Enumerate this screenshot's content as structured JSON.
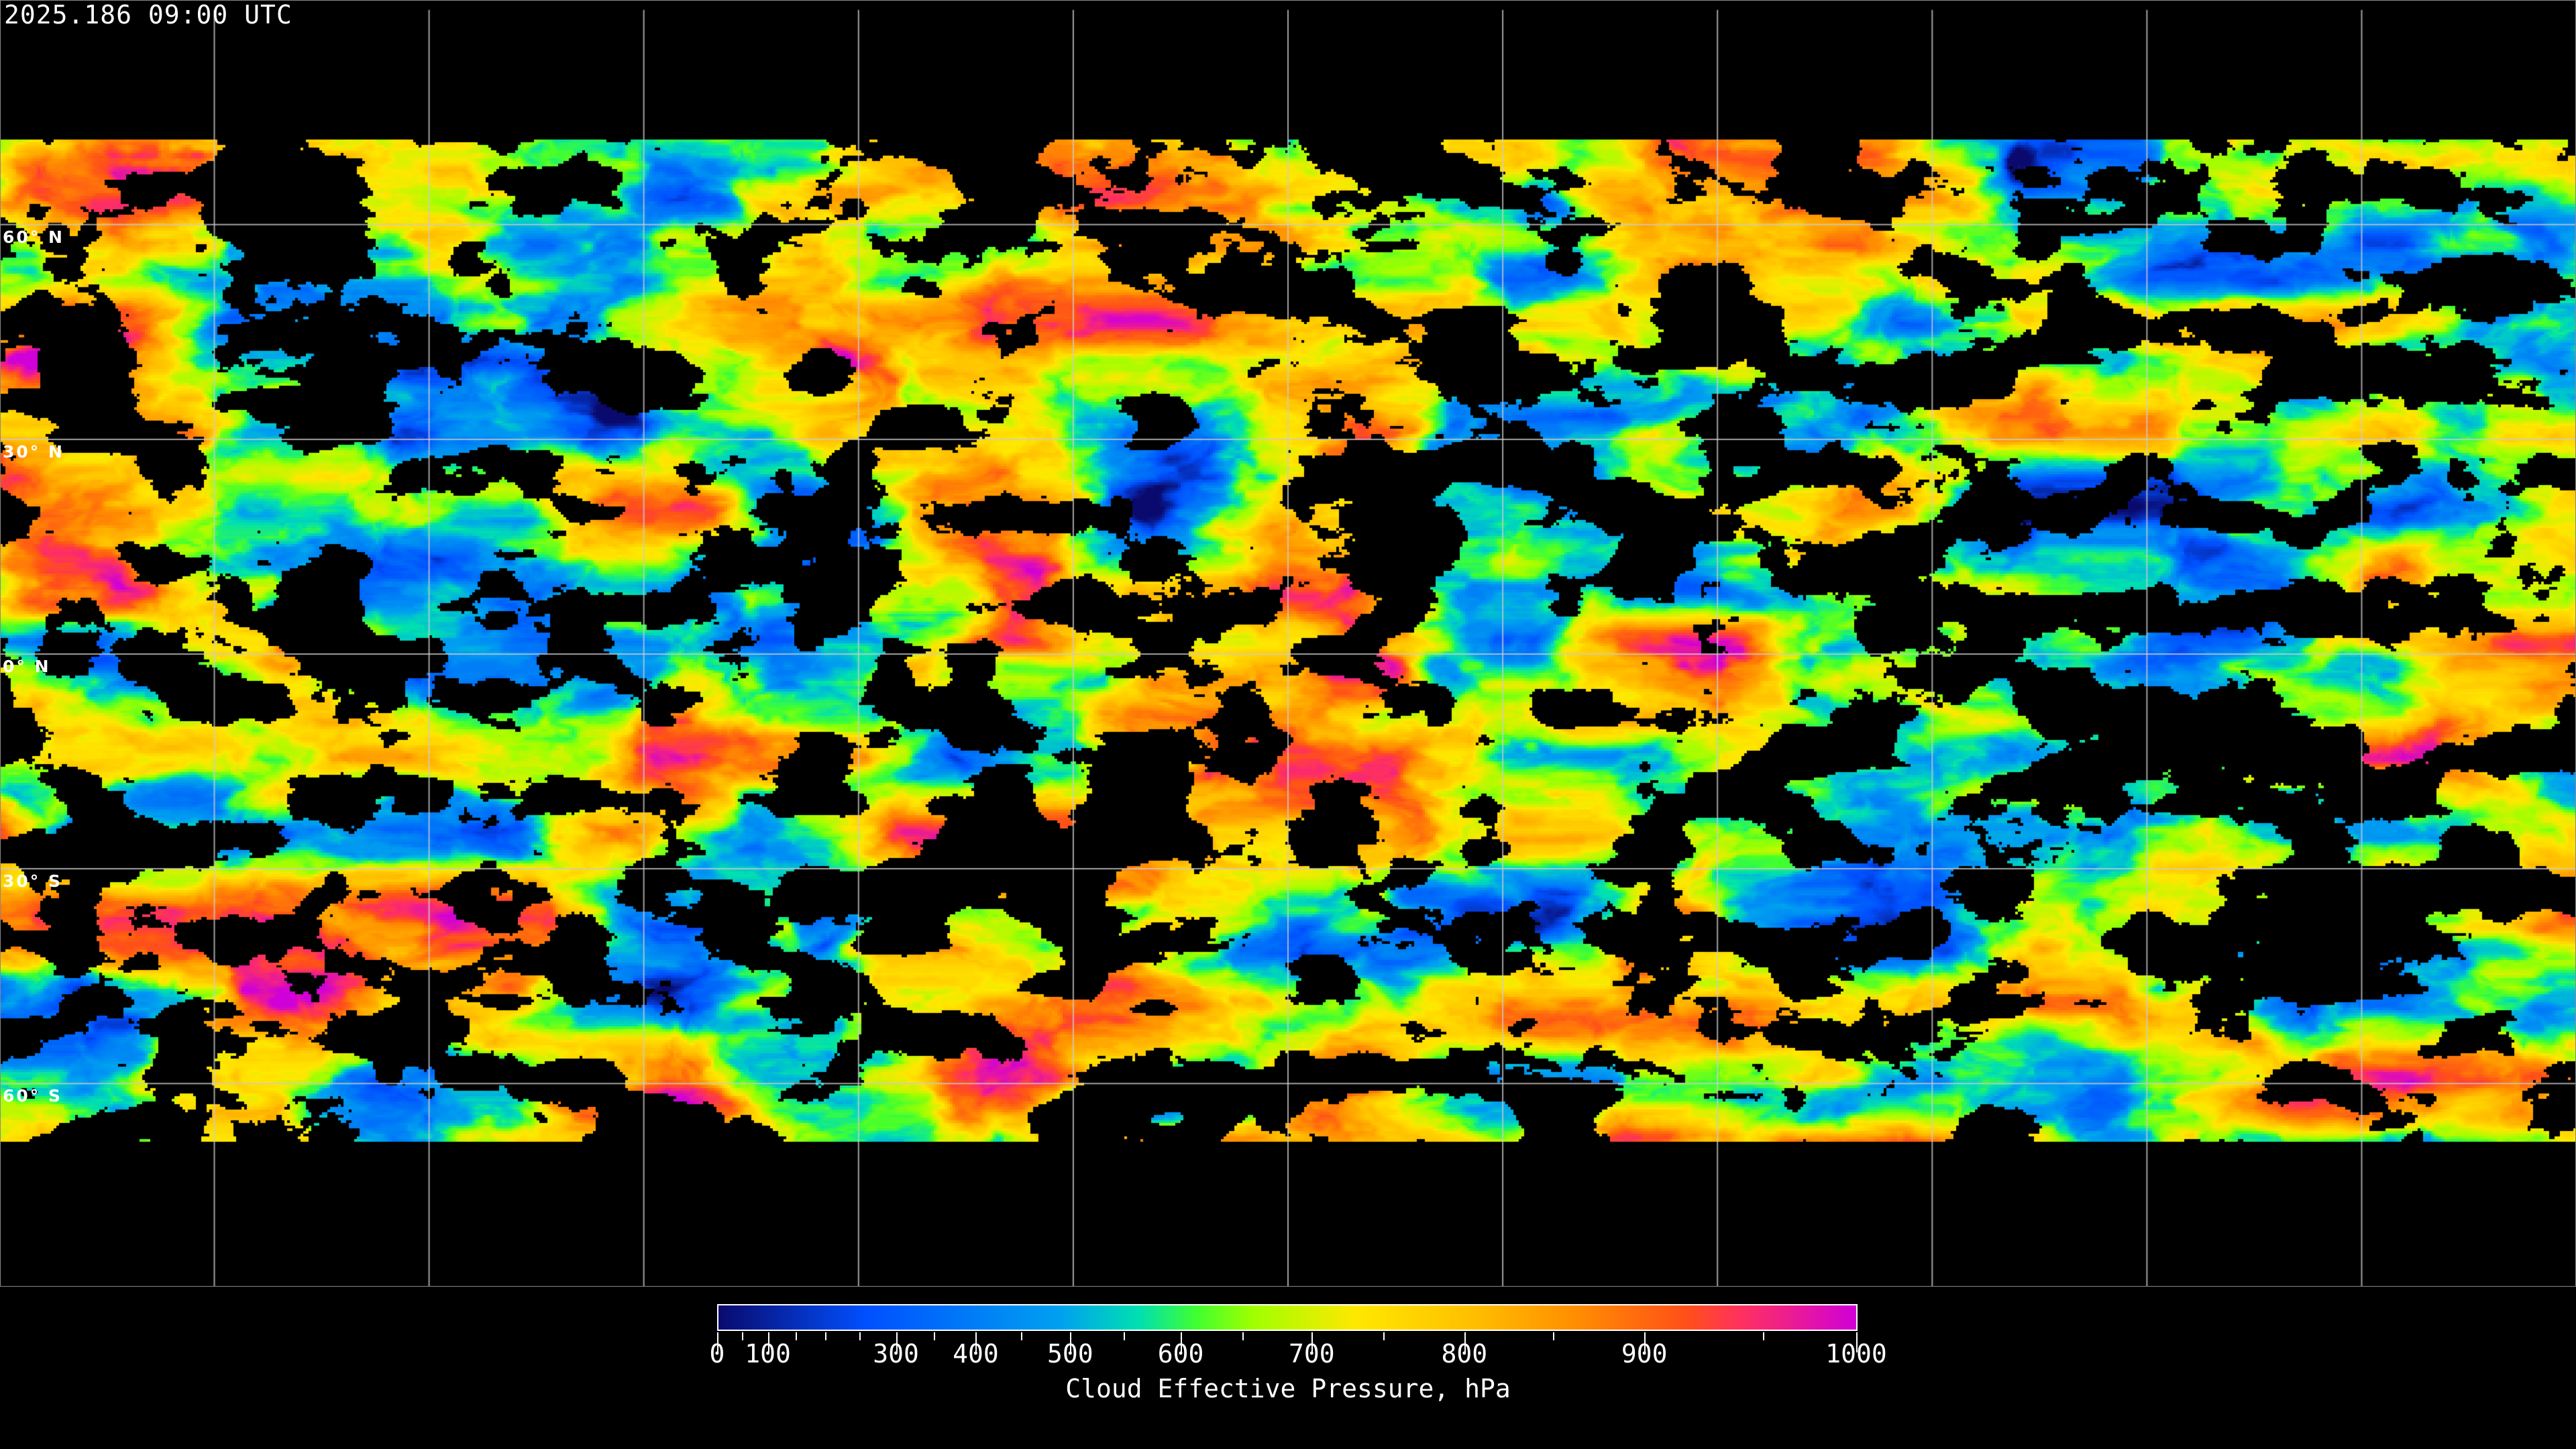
{
  "header": {
    "title": "2025.186 09:00 UTC"
  },
  "map": {
    "projection": "equirectangular",
    "center_longitude": 0,
    "graticule_spacing_deg": 30,
    "grid_color": "#cccccc",
    "coastline_color": "#ffffff",
    "clear_sky_color": "#000000",
    "latitude_labels": [
      {
        "lat": 60,
        "text": "60° N"
      },
      {
        "lat": 30,
        "text": "30° N"
      },
      {
        "lat": 0,
        "text": "0° N"
      },
      {
        "lat": -30,
        "text": "30° S"
      },
      {
        "lat": -60,
        "text": "60° S"
      }
    ]
  },
  "colorbar": {
    "label": "Cloud Effective Pressure, hPa",
    "range": [
      0,
      1000
    ],
    "scale": "nonlinear",
    "ticks": [
      {
        "value": 0,
        "text": "0"
      },
      {
        "value": 100,
        "text": "100"
      },
      {
        "value": 300,
        "text": "300"
      },
      {
        "value": 400,
        "text": "400"
      },
      {
        "value": 500,
        "text": "500"
      },
      {
        "value": 600,
        "text": "600"
      },
      {
        "value": 700,
        "text": "700"
      },
      {
        "value": 800,
        "text": "800"
      },
      {
        "value": 900,
        "text": "900"
      },
      {
        "value": 1000,
        "text": "1000"
      }
    ],
    "colors": [
      "#0a0a6e",
      "#0050ff",
      "#00a0f0",
      "#00e0b0",
      "#40ff30",
      "#a0ff00",
      "#ffe800",
      "#ffc000",
      "#ff9000",
      "#ff5018",
      "#ff3060",
      "#d000d8"
    ]
  }
}
